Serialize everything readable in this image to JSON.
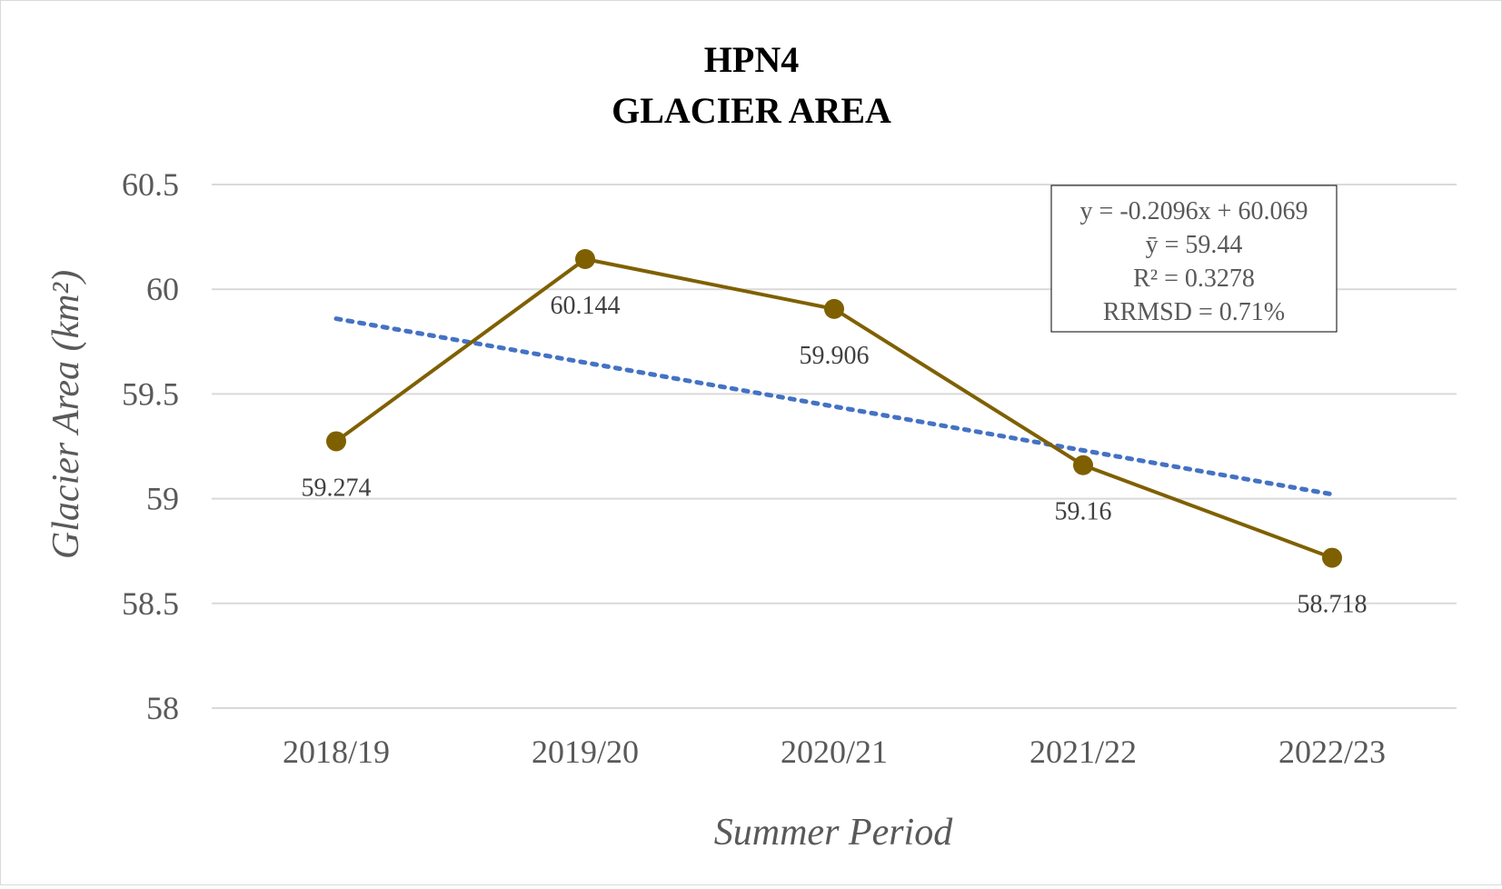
{
  "chart_data": {
    "type": "line",
    "title": [
      "HPN4",
      "GLACIER AREA"
    ],
    "xlabel": "Summer Period",
    "ylabel": "Glacier Area (km²)",
    "categories": [
      "2018/19",
      "2019/20",
      "2020/21",
      "2021/22",
      "2022/23"
    ],
    "series": [
      {
        "values": [
          59.274,
          60.144,
          59.906,
          59.16,
          58.718
        ],
        "data_labels": [
          "59.274",
          "60.144",
          "59.906",
          "59.16",
          "58.718"
        ],
        "color": "#7f6000"
      }
    ],
    "trendline": {
      "type": "linear",
      "slope": -0.2096,
      "intercept": 60.069,
      "color": "#4472c4",
      "style": "dotted"
    },
    "annotation_lines": [
      "y = -0.2096x + 60.069",
      "ȳ = 59.44",
      "R² = 0.3278",
      "RRMSD = 0.71%"
    ],
    "ylim": [
      58,
      60.5
    ],
    "yticks": [
      "58",
      "58.5",
      "59",
      "59.5",
      "60",
      "60.5"
    ],
    "grid": true,
    "legend": "none"
  }
}
